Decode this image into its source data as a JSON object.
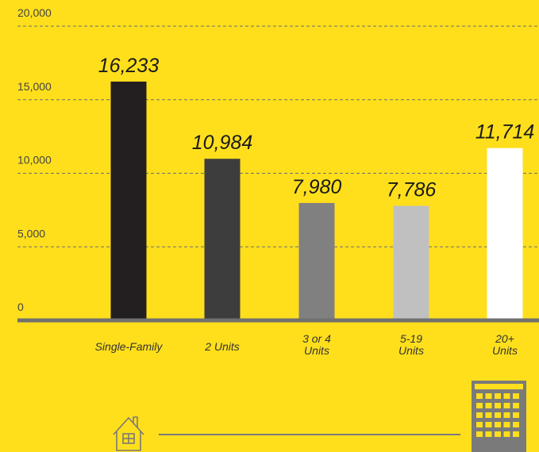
{
  "chart_data": {
    "type": "bar",
    "categories": [
      "Single-Family",
      "2 Units",
      "3 or 4\nUnits",
      "5-19\nUnits",
      "20+\nUnits"
    ],
    "values": [
      16233,
      10984,
      7980,
      7786,
      11714
    ],
    "value_labels": [
      "16,233",
      "10,984",
      "7,980",
      "7,786",
      "11,714"
    ],
    "colors": [
      "#231f20",
      "#3d3d3d",
      "#808080",
      "#c0c0c0",
      "#ffffff"
    ],
    "ylim": [
      0,
      20000
    ],
    "yticks": [
      0,
      {
        "value": 5000,
        "label": "5,000"
      },
      {
        "value": 10000,
        "label": "10,000"
      },
      {
        "value": 15000,
        "label": "15,000"
      },
      {
        "value": 20000,
        "label": "20,000"
      }
    ],
    "grid": true
  }
}
